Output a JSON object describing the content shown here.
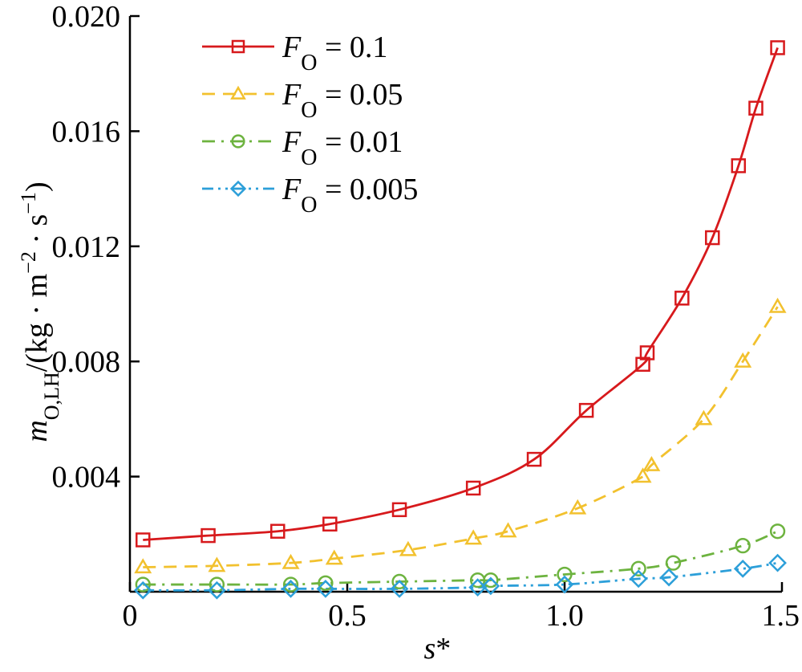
{
  "chart_data": {
    "type": "line",
    "x_label": {
      "italic": "s",
      "rest": "*"
    },
    "y_label": {
      "italic": "m",
      "sub": "O,LH",
      "unit": "/(kg · m",
      "sup1": "−2",
      "mid": " · s",
      "sup2": "−1",
      "close": ")"
    },
    "xlim": [
      0,
      1.5
    ],
    "ylim": [
      0,
      0.02
    ],
    "x_ticks": [
      0,
      0.5,
      1.0,
      1.5
    ],
    "x_tick_labels": [
      "0",
      "0.5",
      "1.0",
      "1.5"
    ],
    "y_ticks": [
      0.004,
      0.008,
      0.012,
      0.016,
      0.02
    ],
    "y_tick_labels": [
      "0.004",
      "0.008",
      "0.012",
      "0.016",
      "0.020"
    ],
    "grid": false,
    "legend_position": "top-left",
    "series": [
      {
        "name": "F_O = 0.1",
        "legend": {
          "italic": "F",
          "sub": "O",
          "rest": " = 0.1"
        },
        "color": "#d7191c",
        "marker": "square",
        "dash": "solid",
        "x": [
          0.03,
          0.18,
          0.34,
          0.46,
          0.62,
          0.79,
          0.93,
          1.05,
          1.18,
          1.19,
          1.27,
          1.34,
          1.4,
          1.44,
          1.49
        ],
        "y": [
          0.0018,
          0.00195,
          0.0021,
          0.00235,
          0.00285,
          0.0036,
          0.0046,
          0.0063,
          0.0079,
          0.0083,
          0.0102,
          0.0123,
          0.0148,
          0.0168,
          0.0189
        ]
      },
      {
        "name": "F_O = 0.05",
        "legend": {
          "italic": "F",
          "sub": "O",
          "rest": " = 0.05"
        },
        "color": "#f2c12e",
        "marker": "triangle",
        "dash": "dashed",
        "x": [
          0.03,
          0.2,
          0.37,
          0.47,
          0.64,
          0.79,
          0.87,
          1.03,
          1.18,
          1.2,
          1.32,
          1.41,
          1.49
        ],
        "y": [
          0.00085,
          0.0009,
          0.001,
          0.00115,
          0.00145,
          0.00185,
          0.0021,
          0.0029,
          0.004,
          0.0044,
          0.006,
          0.008,
          0.0099
        ]
      },
      {
        "name": "F_O = 0.01",
        "legend": {
          "italic": "F",
          "sub": "O",
          "rest": " = 0.01"
        },
        "color": "#6db33f",
        "marker": "circle",
        "dash": "dashdot",
        "x": [
          0.03,
          0.2,
          0.37,
          0.45,
          0.62,
          0.8,
          0.83,
          1.0,
          1.17,
          1.25,
          1.41,
          1.49
        ],
        "y": [
          0.00025,
          0.00025,
          0.00025,
          0.0003,
          0.00035,
          0.0004,
          0.0004,
          0.0006,
          0.0008,
          0.001,
          0.0016,
          0.0021
        ]
      },
      {
        "name": "F_O = 0.005",
        "legend": {
          "italic": "F",
          "sub": "O",
          "rest": " = 0.005"
        },
        "color": "#2c9fd9",
        "marker": "diamond",
        "dash": "dashdotdot",
        "x": [
          0.03,
          0.2,
          0.37,
          0.45,
          0.62,
          0.8,
          0.83,
          1.0,
          1.17,
          1.24,
          1.41,
          1.49
        ],
        "y": [
          5e-05,
          5e-05,
          0.0001,
          0.0001,
          0.0001,
          0.00015,
          0.0002,
          0.00025,
          0.00045,
          0.0005,
          0.0008,
          0.001
        ]
      }
    ]
  }
}
